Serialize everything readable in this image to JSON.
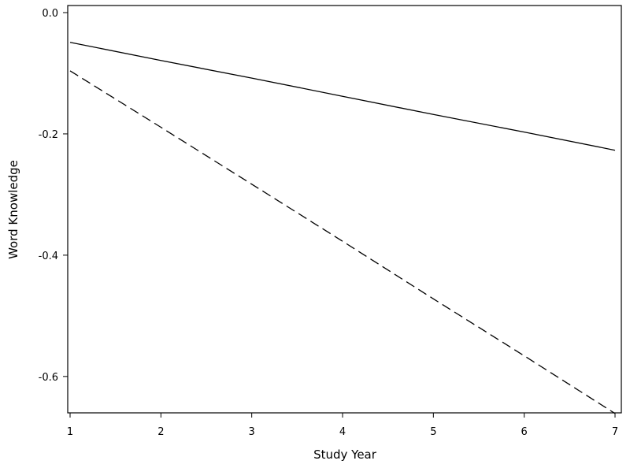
{
  "chart_data": {
    "type": "line",
    "xlabel": "Study Year",
    "ylabel": "Word Knowledge",
    "xlim": [
      1,
      7
    ],
    "ylim": [
      -0.66,
      0.0
    ],
    "x_ticks": [
      1,
      2,
      3,
      4,
      5,
      6,
      7
    ],
    "x_tick_labels": [
      "1",
      "2",
      "3",
      "4",
      "5",
      "6",
      "7"
    ],
    "y_ticks": [
      0.0,
      -0.2,
      -0.4,
      -0.6
    ],
    "y_tick_labels": [
      "0.0",
      "-0.2",
      "-0.4",
      "-0.6"
    ],
    "grid": false,
    "legend": "none",
    "series": [
      {
        "style": "solid",
        "color": "#000000",
        "x": [
          1,
          2,
          3,
          4,
          5,
          6,
          7
        ],
        "y": [
          -0.049,
          -0.079,
          -0.108,
          -0.138,
          -0.168,
          -0.197,
          -0.227
        ]
      },
      {
        "style": "dashed",
        "color": "#000000",
        "x": [
          1,
          2,
          3,
          4,
          5,
          6,
          7
        ],
        "y": [
          -0.096,
          -0.189,
          -0.283,
          -0.377,
          -0.472,
          -0.566,
          -0.661
        ]
      }
    ]
  }
}
